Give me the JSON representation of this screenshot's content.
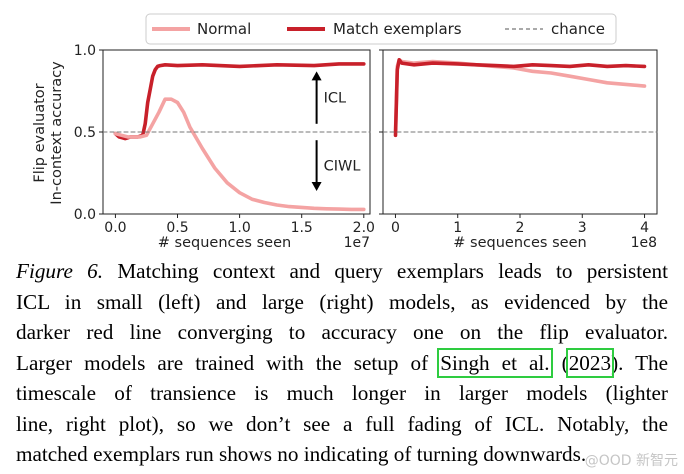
{
  "legend": {
    "entries": [
      {
        "label": "Normal",
        "color": "#f4a3a3",
        "style": "solid"
      },
      {
        "label": "Match exemplars",
        "color": "#c8202a",
        "style": "solid"
      },
      {
        "label": "chance",
        "color": "#777777",
        "style": "dashed"
      }
    ]
  },
  "chart_data": [
    {
      "type": "line",
      "ylabel": "Flip evaluator\nIn-context accuracy",
      "xlabel": "# sequences seen",
      "x_multiplier": "1e7",
      "xlim": [
        -0.1,
        2.05
      ],
      "ylim": [
        0.0,
        1.0
      ],
      "xticks": [
        0.0,
        0.5,
        1.0,
        1.5,
        2.0
      ],
      "xtick_labels": [
        "0.0",
        "0.5",
        "1.0",
        "1.5",
        "2.0"
      ],
      "yticks": [
        0.0,
        0.5,
        1.0
      ],
      "ytick_labels": [
        "0.0",
        "0.5",
        "1.0"
      ],
      "chance": 0.5,
      "annotations": [
        {
          "text": "ICL",
          "direction": "up",
          "x": 1.62,
          "y_from": 0.55,
          "y_to": 0.87
        },
        {
          "text": "CIWL",
          "direction": "down",
          "x": 1.62,
          "y_from": 0.45,
          "y_to": 0.14
        }
      ],
      "series": [
        {
          "name": "Match exemplars",
          "color": "#c8202a",
          "x": [
            0.0,
            0.03,
            0.08,
            0.12,
            0.18,
            0.22,
            0.24,
            0.26,
            0.28,
            0.3,
            0.32,
            0.34,
            0.36,
            0.4,
            0.5,
            0.7,
            1.0,
            1.3,
            1.6,
            1.8,
            2.0
          ],
          "y": [
            0.49,
            0.47,
            0.46,
            0.47,
            0.47,
            0.48,
            0.55,
            0.68,
            0.76,
            0.84,
            0.88,
            0.9,
            0.905,
            0.91,
            0.905,
            0.91,
            0.9,
            0.91,
            0.905,
            0.915,
            0.915
          ]
        },
        {
          "name": "Normal",
          "color": "#f4a3a3",
          "x": [
            0.0,
            0.05,
            0.1,
            0.15,
            0.2,
            0.25,
            0.3,
            0.35,
            0.4,
            0.45,
            0.5,
            0.55,
            0.6,
            0.7,
            0.8,
            0.9,
            1.0,
            1.1,
            1.2,
            1.3,
            1.4,
            1.5,
            1.6,
            1.7,
            1.8,
            1.9,
            2.0
          ],
          "y": [
            0.49,
            0.48,
            0.47,
            0.47,
            0.47,
            0.48,
            0.55,
            0.62,
            0.7,
            0.7,
            0.68,
            0.62,
            0.53,
            0.4,
            0.28,
            0.19,
            0.13,
            0.09,
            0.07,
            0.055,
            0.045,
            0.04,
            0.035,
            0.032,
            0.03,
            0.028,
            0.028
          ]
        },
        {
          "name": "chance",
          "color": "#777777",
          "dashed": true,
          "x": [
            -0.1,
            2.05
          ],
          "y": [
            0.5,
            0.5
          ]
        }
      ]
    },
    {
      "type": "line",
      "xlabel": "# sequences seen",
      "x_multiplier": "1e8",
      "xlim": [
        -0.2,
        4.2
      ],
      "ylim": [
        0.0,
        1.0
      ],
      "xticks": [
        0,
        1,
        2,
        3,
        4
      ],
      "xtick_labels": [
        "0",
        "1",
        "2",
        "3",
        "4"
      ],
      "chance": 0.5,
      "series": [
        {
          "name": "Normal",
          "color": "#f4a3a3",
          "x": [
            0.0,
            0.03,
            0.06,
            0.1,
            0.3,
            0.6,
            1.0,
            1.3,
            1.6,
            1.9,
            2.2,
            2.5,
            2.8,
            3.1,
            3.4,
            3.7,
            4.0
          ],
          "y": [
            0.5,
            0.9,
            0.94,
            0.93,
            0.92,
            0.93,
            0.92,
            0.91,
            0.9,
            0.89,
            0.87,
            0.86,
            0.84,
            0.82,
            0.8,
            0.79,
            0.78
          ]
        },
        {
          "name": "Match exemplars",
          "color": "#c8202a",
          "x": [
            0.0,
            0.03,
            0.06,
            0.1,
            0.3,
            0.6,
            1.0,
            1.3,
            1.6,
            1.9,
            2.2,
            2.5,
            2.8,
            3.1,
            3.4,
            3.7,
            4.0
          ],
          "y": [
            0.48,
            0.88,
            0.94,
            0.92,
            0.91,
            0.92,
            0.915,
            0.91,
            0.905,
            0.9,
            0.91,
            0.905,
            0.9,
            0.91,
            0.9,
            0.905,
            0.9
          ]
        },
        {
          "name": "chance",
          "color": "#777777",
          "dashed": true,
          "x": [
            -0.2,
            4.2
          ],
          "y": [
            0.5,
            0.5
          ]
        }
      ]
    }
  ],
  "caption": {
    "figure_label": "Figure 6.",
    "line1_rest": "Matching context and query exemplars leads to persistent",
    "line2": "ICL in small (left) and large (right) models, as evidenced by the",
    "line3": "darker red line converging to accuracy one on the flip evaluator.",
    "line4_pre": "Larger models are trained with the setup of",
    "cite_author": "Singh et al.",
    "cite_open": "(",
    "cite_year": "2023",
    "line4_post": "). The",
    "line5": "timescale of transience is much longer in larger models (lighter",
    "line6": "line, right plot), so we don’t see a full fading of ICL. Notably, the",
    "line7": "matched exemplars run shows no indicating of turning downwards."
  },
  "watermark": "@OOD 新智元"
}
